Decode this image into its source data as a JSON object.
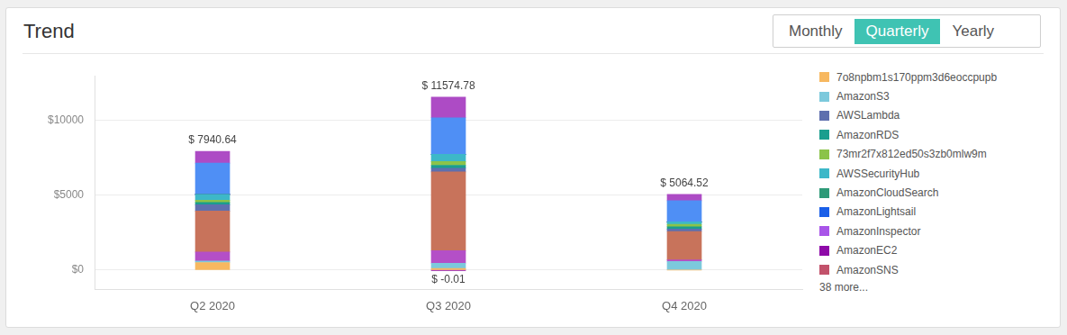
{
  "header": {
    "title": "Trend",
    "tabs": [
      "Monthly",
      "Quarterly",
      "Yearly"
    ],
    "selected": "Quarterly"
  },
  "chart_data": {
    "type": "bar",
    "stacked": true,
    "grid": true,
    "categories": [
      "Q2 2020",
      "Q3 2020",
      "Q4 2020"
    ],
    "ylim": [
      -1300,
      13000
    ],
    "yticks": [
      {
        "value": 0,
        "label": "$0"
      },
      {
        "value": 5000,
        "label": "$5000"
      },
      {
        "value": 10000,
        "label": "$10000"
      }
    ],
    "series": [
      {
        "name": "7o8npbm1s170ppm3d6eoccpupb",
        "color": "#f7b860",
        "values": [
          500,
          100,
          0
        ]
      },
      {
        "name": "AmazonS3",
        "color": "#7cc9dc",
        "values": [
          100,
          360,
          580
        ]
      },
      {
        "name": null,
        "color": "#b44fc7",
        "values": [
          600,
          840,
          100
        ]
      },
      {
        "name": null,
        "color": "#c8735b",
        "values": [
          2750,
          5265,
          1900
        ]
      },
      {
        "name": "AWSLambda",
        "color": "#5e6fae",
        "values": [
          420,
          250,
          160
        ]
      },
      {
        "name": "AmazonRDS",
        "color": "#1a9e8e",
        "values": [
          150,
          200,
          160
        ]
      },
      {
        "name": "73mr2f7x812ed50s3zb0mlw9m",
        "color": "#8bc34a",
        "values": [
          150,
          250,
          160
        ]
      },
      {
        "name": "AWSSecurityHub",
        "color": "#3db8c8",
        "values": [
          390,
          480,
          160
        ]
      },
      {
        "name": "AmazonCloudSearch",
        "color": "#2e9a78",
        "values": [
          0,
          0,
          0
        ]
      },
      {
        "name": "AmazonLightsail",
        "color": "#1a5fe8",
        "values": [
          0,
          0,
          0
        ]
      },
      {
        "name": "AmazonInspector",
        "color": "#a855e8",
        "values": [
          0,
          0,
          0
        ]
      },
      {
        "name": "AmazonEC2",
        "color": "#8e0aa8",
        "values": [
          0,
          -0.01,
          0
        ]
      },
      {
        "name": "AmazonSNS",
        "color": "#c2526b",
        "values": [
          0,
          0,
          0
        ]
      },
      {
        "name": null,
        "color": "#4f8ff5",
        "values": [
          2100.64,
          2450,
          1424.52
        ]
      },
      {
        "name": null,
        "color": "#ad4bc5",
        "values": [
          780,
          1379.79,
          420
        ]
      }
    ],
    "legend": "right",
    "legend_note": "38 more...",
    "annotations": [
      {
        "x": "Q2 2020",
        "y": 7940.64,
        "label": "$ 7940.64"
      },
      {
        "x": "Q3 2020",
        "y": 11574.78,
        "label": "$ 11574.78"
      },
      {
        "x": "Q3 2020",
        "y": -0.01,
        "label": "$ -0.01"
      },
      {
        "x": "Q4 2020",
        "y": 5064.52,
        "label": "$ 5064.52"
      }
    ]
  }
}
